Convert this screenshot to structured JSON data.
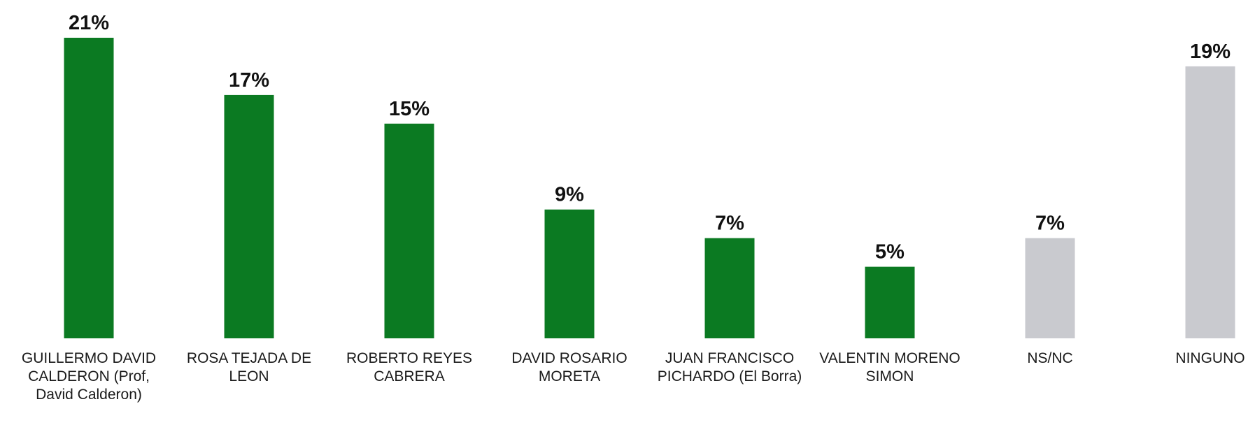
{
  "chart_data": {
    "type": "bar",
    "categories": [
      "GUILLERMO DAVID CALDERON (Prof, David Calderon)",
      "ROSA TEJADA DE LEON",
      "ROBERTO REYES CABRERA",
      "DAVID ROSARIO MORETA",
      "JUAN FRANCISCO PICHARDO (El Borra)",
      "VALENTIN MORENO SIMON",
      "NS/NC",
      "NINGUNO"
    ],
    "values": [
      21,
      17,
      15,
      9,
      7,
      5,
      7,
      19
    ],
    "value_labels": [
      "21%",
      "17%",
      "15%",
      "9%",
      "7%",
      "5%",
      "7%",
      "19%"
    ],
    "colors": [
      "#0b7a22",
      "#0b7a22",
      "#0b7a22",
      "#0b7a22",
      "#0b7a22",
      "#0b7a22",
      "#c9cacf",
      "#c9cacf"
    ]
  }
}
